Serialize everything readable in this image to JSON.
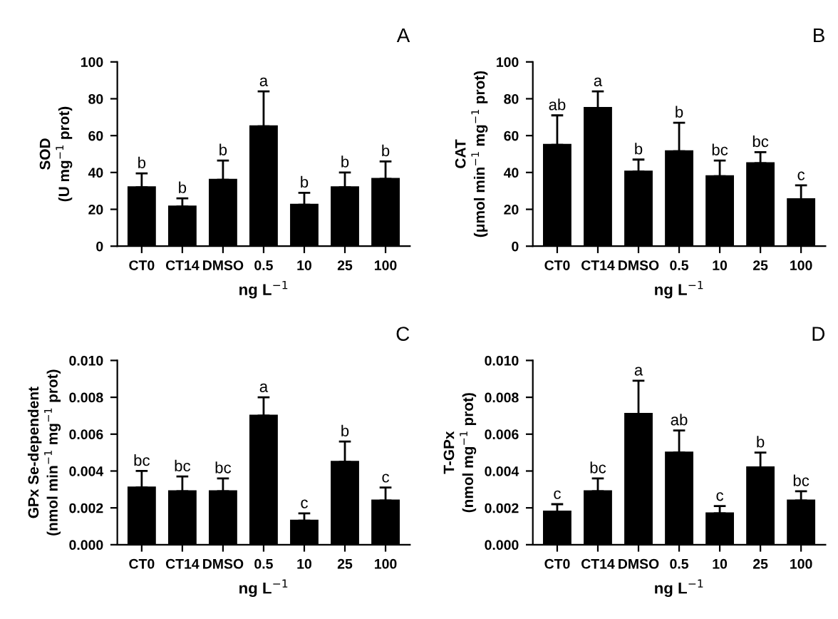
{
  "chart_data": [
    {
      "type": "bar",
      "title": "A",
      "xlabel": "ng L$^{−1}$",
      "ylabel": "SOD\n(U mg$^{−1}$ prot)",
      "categories": [
        "CT0",
        "CT14",
        "DMSO",
        "0.5",
        "10",
        "25",
        "100"
      ],
      "color": "#000000",
      "values": [
        32,
        21.5,
        36,
        65,
        22.5,
        32,
        36.5
      ],
      "errors": [
        [
          32,
          39.5
        ],
        [
          21.5,
          26
        ],
        [
          36,
          46.5
        ],
        [
          65,
          84
        ],
        [
          22.5,
          29
        ],
        [
          32,
          40
        ],
        [
          36.5,
          46
        ]
      ],
      "ylim": [
        0,
        100
      ],
      "yticks": [
        0,
        20,
        40,
        60,
        80,
        100
      ],
      "grid": false,
      "annotations": [
        {
          "text": "b",
          "x": "CT0",
          "y": 39.5
        },
        {
          "text": "b",
          "x": "CT14",
          "y": 26
        },
        {
          "text": "b",
          "x": "DMSO",
          "y": 46.5
        },
        {
          "text": "a",
          "x": "0.5",
          "y": 84
        },
        {
          "text": "b",
          "x": "10",
          "y": 29
        },
        {
          "text": "b",
          "x": "25",
          "y": 40
        },
        {
          "text": "b",
          "x": "100",
          "y": 46
        }
      ]
    },
    {
      "type": "bar",
      "title": "B",
      "xlabel": "ng L$^{−1}$",
      "ylabel": "CAT\n(μmol min$^{−1}$ mg$^{−1}$ prot)",
      "categories": [
        "CT0",
        "CT14",
        "DMSO",
        "0.5",
        "10",
        "25",
        "100"
      ],
      "color": "#000000",
      "values": [
        55,
        75,
        40.5,
        51.5,
        38,
        45,
        25.5
      ],
      "errors": [
        [
          55,
          71
        ],
        [
          75,
          84
        ],
        [
          40.5,
          47
        ],
        [
          51.5,
          67
        ],
        [
          38,
          46.5
        ],
        [
          45,
          51
        ],
        [
          25.5,
          33
        ]
      ],
      "ylim": [
        0,
        100
      ],
      "yticks": [
        0,
        20,
        40,
        60,
        80,
        100
      ],
      "grid": false,
      "annotations": [
        {
          "text": "ab",
          "x": "CT0",
          "y": 71
        },
        {
          "text": "a",
          "x": "CT14",
          "y": 84
        },
        {
          "text": "b",
          "x": "DMSO",
          "y": 47
        },
        {
          "text": "b",
          "x": "0.5",
          "y": 67
        },
        {
          "text": "bc",
          "x": "10",
          "y": 46.5
        },
        {
          "text": "bc",
          "x": "25",
          "y": 51
        },
        {
          "text": "c",
          "x": "100",
          "y": 33
        }
      ]
    },
    {
      "type": "bar",
      "title": "C",
      "xlabel": "ng L$^{−1}$",
      "ylabel": "GPx Se-dependent\n(nmol min$^{−1}$ mg$^{−1}$ prot)",
      "categories": [
        "CT0",
        "CT14",
        "DMSO",
        "0.5",
        "10",
        "25",
        "100"
      ],
      "color": "#000000",
      "values": [
        0.0031,
        0.0029,
        0.0029,
        0.007,
        0.0013,
        0.0045,
        0.0024
      ],
      "errors": [
        [
          0.0031,
          0.004
        ],
        [
          0.0029,
          0.0037
        ],
        [
          0.0029,
          0.0036
        ],
        [
          0.007,
          0.008
        ],
        [
          0.0013,
          0.0017
        ],
        [
          0.0045,
          0.0056
        ],
        [
          0.0024,
          0.0031
        ]
      ],
      "ylim": [
        0,
        0.01
      ],
      "yticks": [
        {
          "value": 0,
          "label": "0.000"
        },
        {
          "value": 0.002,
          "label": "0.002"
        },
        {
          "value": 0.004,
          "label": "0.004"
        },
        {
          "value": 0.006,
          "label": "0.006"
        },
        {
          "value": 0.008,
          "label": "0.008"
        },
        {
          "value": 0.01,
          "label": "0.010"
        }
      ],
      "grid": false,
      "annotations": [
        {
          "text": "bc",
          "x": "CT0",
          "y": 0.004
        },
        {
          "text": "bc",
          "x": "CT14",
          "y": 0.0037
        },
        {
          "text": "bc",
          "x": "DMSO",
          "y": 0.0036
        },
        {
          "text": "a",
          "x": "0.5",
          "y": 0.008
        },
        {
          "text": "c",
          "x": "10",
          "y": 0.0017
        },
        {
          "text": "b",
          "x": "25",
          "y": 0.0056
        },
        {
          "text": "c",
          "x": "100",
          "y": 0.0031
        }
      ]
    },
    {
      "type": "bar",
      "title": "D",
      "xlabel": "ng L$^{−1}$",
      "ylabel": "T-GPx\n(nmol mg$^{−1}$ prot)",
      "categories": [
        "CT0",
        "CT14",
        "DMSO",
        "0.5",
        "10",
        "25",
        "100"
      ],
      "color": "#000000",
      "values": [
        0.0018,
        0.0029,
        0.0071,
        0.005,
        0.0017,
        0.0042,
        0.0024
      ],
      "errors": [
        [
          0.0018,
          0.0022
        ],
        [
          0.0029,
          0.0036
        ],
        [
          0.0071,
          0.0089
        ],
        [
          0.005,
          0.0062
        ],
        [
          0.0017,
          0.0021
        ],
        [
          0.0042,
          0.005
        ],
        [
          0.0024,
          0.0029
        ]
      ],
      "ylim": [
        0,
        0.01
      ],
      "yticks": [
        {
          "value": 0,
          "label": "0.000"
        },
        {
          "value": 0.002,
          "label": "0.002"
        },
        {
          "value": 0.004,
          "label": "0.004"
        },
        {
          "value": 0.006,
          "label": "0.006"
        },
        {
          "value": 0.008,
          "label": "0.008"
        },
        {
          "value": 0.01,
          "label": "0.010"
        }
      ],
      "grid": false,
      "annotations": [
        {
          "text": "c",
          "x": "CT0",
          "y": 0.0022
        },
        {
          "text": "bc",
          "x": "CT14",
          "y": 0.0036
        },
        {
          "text": "a",
          "x": "DMSO",
          "y": 0.0089
        },
        {
          "text": "ab",
          "x": "0.5",
          "y": 0.0062
        },
        {
          "text": "c",
          "x": "10",
          "y": 0.0021
        },
        {
          "text": "b",
          "x": "25",
          "y": 0.005
        },
        {
          "text": "bc",
          "x": "100",
          "y": 0.0029
        }
      ]
    }
  ]
}
